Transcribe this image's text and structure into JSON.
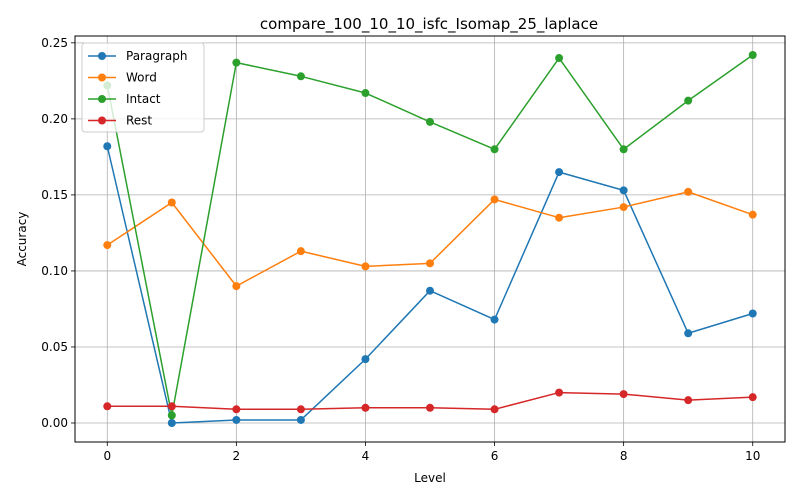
{
  "chart_data": {
    "type": "line",
    "title": "compare_100_10_10_isfc_Isomap_25_laplace",
    "xlabel": "Level",
    "ylabel": "Accuracy",
    "x": [
      0,
      1,
      2,
      3,
      4,
      5,
      6,
      7,
      8,
      9,
      10
    ],
    "xlim": [
      -0.5,
      10.5
    ],
    "ylim": [
      -0.0125,
      0.2545
    ],
    "xticks": [
      0,
      2,
      4,
      6,
      8,
      10
    ],
    "xtick_labels": [
      "0",
      "2",
      "4",
      "6",
      "8",
      "10"
    ],
    "yticks": [
      0.0,
      0.05,
      0.1,
      0.15,
      0.2,
      0.25
    ],
    "ytick_labels": [
      "0.00",
      "0.05",
      "0.10",
      "0.15",
      "0.20",
      "0.25"
    ],
    "grid": true,
    "legend_position": "upper-left",
    "series": [
      {
        "name": "Paragraph",
        "color": "#1f77b4",
        "values": [
          0.182,
          0.0,
          0.002,
          0.002,
          0.042,
          0.087,
          0.068,
          0.165,
          0.153,
          0.059,
          0.072
        ]
      },
      {
        "name": "Word",
        "color": "#ff7f0e",
        "values": [
          0.117,
          0.145,
          0.09,
          0.113,
          0.103,
          0.105,
          0.147,
          0.135,
          0.142,
          0.152,
          0.137
        ]
      },
      {
        "name": "Intact",
        "color": "#2ca02c",
        "values": [
          0.222,
          0.005,
          0.237,
          0.228,
          0.217,
          0.198,
          0.18,
          0.24,
          0.18,
          0.212,
          0.242
        ]
      },
      {
        "name": "Rest",
        "color": "#d62728",
        "values": [
          0.011,
          0.011,
          0.009,
          0.009,
          0.01,
          0.01,
          0.009,
          0.02,
          0.019,
          0.015,
          0.017
        ]
      }
    ]
  }
}
